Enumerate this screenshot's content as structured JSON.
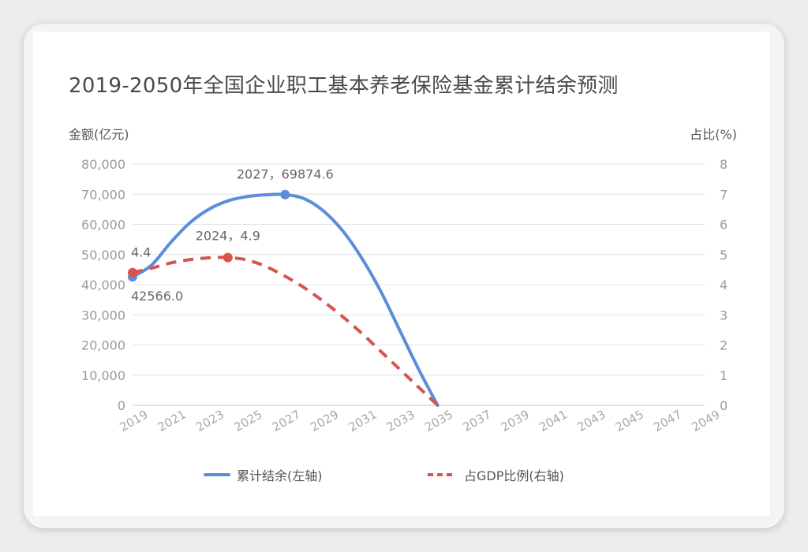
{
  "chart_data": {
    "type": "line",
    "title": "2019-2050年全国企业职工基本养老保险基金累计结余预测",
    "y_left_label": "金额(亿元)",
    "y_right_label": "占比(%)",
    "y_left_ticks": [
      "0",
      "10,000",
      "20,000",
      "30,000",
      "40,000",
      "50,000",
      "60,000",
      "70,000",
      "80,000"
    ],
    "y_right_ticks": [
      "0",
      "1",
      "2",
      "3",
      "4",
      "5",
      "6",
      "7",
      "8"
    ],
    "y_left_range": [
      0,
      80000
    ],
    "y_right_range": [
      0,
      8
    ],
    "x_ticks": [
      "2019",
      "2021",
      "2023",
      "2025",
      "2027",
      "2029",
      "2031",
      "2033",
      "2035",
      "2037",
      "2039",
      "2041",
      "2043",
      "2045",
      "2047",
      "2049"
    ],
    "x_range": [
      2019,
      2049
    ],
    "grid": true,
    "legend_position": "bottom",
    "series": [
      {
        "name": "累计结余(左轴)",
        "axis": "left",
        "color": "#5b8ddb",
        "line_style": "solid",
        "points": [
          [
            2019,
            42566.0
          ],
          [
            2020,
            46500
          ],
          [
            2021,
            54000
          ],
          [
            2022,
            60500
          ],
          [
            2023,
            65000
          ],
          [
            2024,
            67800
          ],
          [
            2025,
            69200
          ],
          [
            2026,
            69800
          ],
          [
            2027,
            69874.6
          ],
          [
            2028,
            68500
          ],
          [
            2029,
            64500
          ],
          [
            2030,
            58000
          ],
          [
            2031,
            49000
          ],
          [
            2032,
            38000
          ],
          [
            2033,
            25000
          ],
          [
            2034,
            12000
          ],
          [
            2035,
            0
          ]
        ]
      },
      {
        "name": "占GDP比例(右轴)",
        "axis": "right",
        "color": "#d9534f",
        "line_style": "dashed",
        "points": [
          [
            2019,
            4.4
          ],
          [
            2020,
            4.55
          ],
          [
            2021,
            4.72
          ],
          [
            2022,
            4.83
          ],
          [
            2023,
            4.89
          ],
          [
            2024,
            4.9
          ],
          [
            2025,
            4.82
          ],
          [
            2026,
            4.6
          ],
          [
            2027,
            4.28
          ],
          [
            2028,
            3.9
          ],
          [
            2029,
            3.45
          ],
          [
            2030,
            2.95
          ],
          [
            2031,
            2.4
          ],
          [
            2032,
            1.8
          ],
          [
            2033,
            1.2
          ],
          [
            2034,
            0.6
          ],
          [
            2035,
            0
          ]
        ]
      }
    ],
    "annotations": [
      {
        "series": 0,
        "x": 2019,
        "y": 42566.0,
        "text": "42566.0",
        "marker": true
      },
      {
        "series": 0,
        "x": 2027,
        "y": 69874.6,
        "text": "2027，69874.6",
        "marker": true
      },
      {
        "series": 1,
        "x": 2019,
        "y": 4.4,
        "text": "4.4",
        "marker": true
      },
      {
        "series": 1,
        "x": 2024,
        "y": 4.9,
        "text": "2024，4.9",
        "marker": true
      }
    ]
  }
}
